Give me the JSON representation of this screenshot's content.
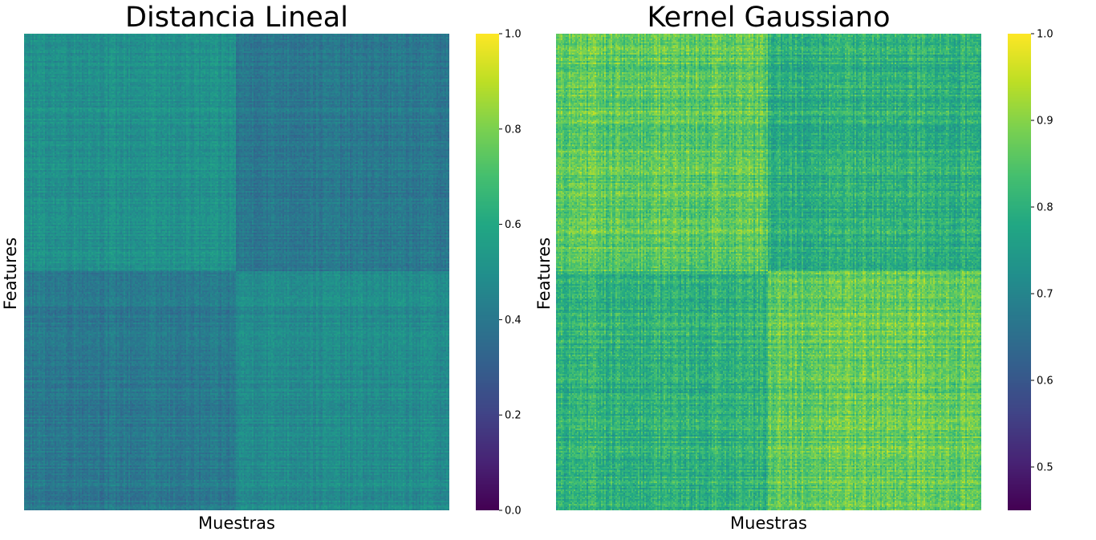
{
  "chart_data": [
    {
      "type": "heatmap",
      "title": "Distancia Lineal",
      "xlabel": "Muestras",
      "ylabel": "Features",
      "colormap": "viridis",
      "colorbar": {
        "range": [
          0.0,
          1.0
        ],
        "ticks": [
          "0.0",
          "0.2",
          "0.4",
          "0.6",
          "0.8",
          "1.0"
        ]
      },
      "blocks": [
        [
          0.5,
          0.4
        ],
        [
          0.4,
          0.48
        ]
      ],
      "block_split": 0.5,
      "noise": 0.07
    },
    {
      "type": "heatmap",
      "title": "Kernel Gaussiano",
      "xlabel": "Muestras",
      "ylabel": "Features",
      "colormap": "viridis",
      "colorbar": {
        "range": [
          0.45,
          1.0
        ],
        "ticks": [
          "0.5",
          "0.6",
          "0.7",
          "0.8",
          "0.9",
          "1.0"
        ]
      },
      "blocks": [
        [
          0.86,
          0.8
        ],
        [
          0.8,
          0.87
        ]
      ],
      "block_split": 0.5,
      "noise": 0.07
    }
  ]
}
